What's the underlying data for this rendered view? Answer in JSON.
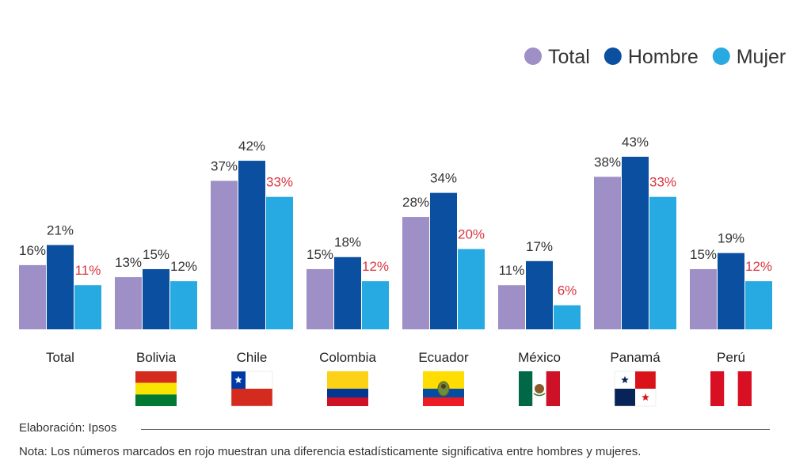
{
  "chart_data": {
    "type": "bar",
    "categories": [
      "Total",
      "Bolivia",
      "Chile",
      "Colombia",
      "Ecuador",
      "México",
      "Panamá",
      "Perú"
    ],
    "series": [
      {
        "name": "Total",
        "color": "#9e8fc7",
        "values": [
          16,
          13,
          37,
          15,
          28,
          11,
          38,
          15
        ],
        "labels": [
          "16%",
          "13%",
          "37%",
          "15%",
          "28%",
          "11%",
          "38%",
          "15%"
        ],
        "significant": [
          false,
          false,
          false,
          false,
          false,
          false,
          false,
          false
        ]
      },
      {
        "name": "Hombre",
        "color": "#0b4fa0",
        "values": [
          21,
          15,
          42,
          18,
          34,
          17,
          43,
          19
        ],
        "labels": [
          "21%",
          "15%",
          "42%",
          "18%",
          "34%",
          "17%",
          "43%",
          "19%"
        ],
        "significant": [
          false,
          false,
          false,
          false,
          false,
          false,
          false,
          false
        ]
      },
      {
        "name": "Mujer",
        "color": "#27a9e1",
        "values": [
          11,
          12,
          33,
          12,
          20,
          6,
          33,
          12
        ],
        "labels": [
          "11%",
          "12%",
          "33%",
          "12%",
          "20%",
          "6%",
          "33%",
          "12%"
        ],
        "significant": [
          true,
          false,
          true,
          true,
          true,
          true,
          true,
          true
        ]
      }
    ],
    "significant_color": "#d9353f",
    "label_color": "#333333",
    "legend_position": "top-right",
    "flags": [
      "none",
      "bolivia",
      "chile",
      "colombia",
      "ecuador",
      "mexico",
      "panama",
      "peru"
    ]
  },
  "footer": {
    "source": "Elaboración: Ipsos",
    "note": "Nota: Los números marcados en rojo muestran una diferencia estadísticamente significativa entre hombres y mujeres."
  }
}
